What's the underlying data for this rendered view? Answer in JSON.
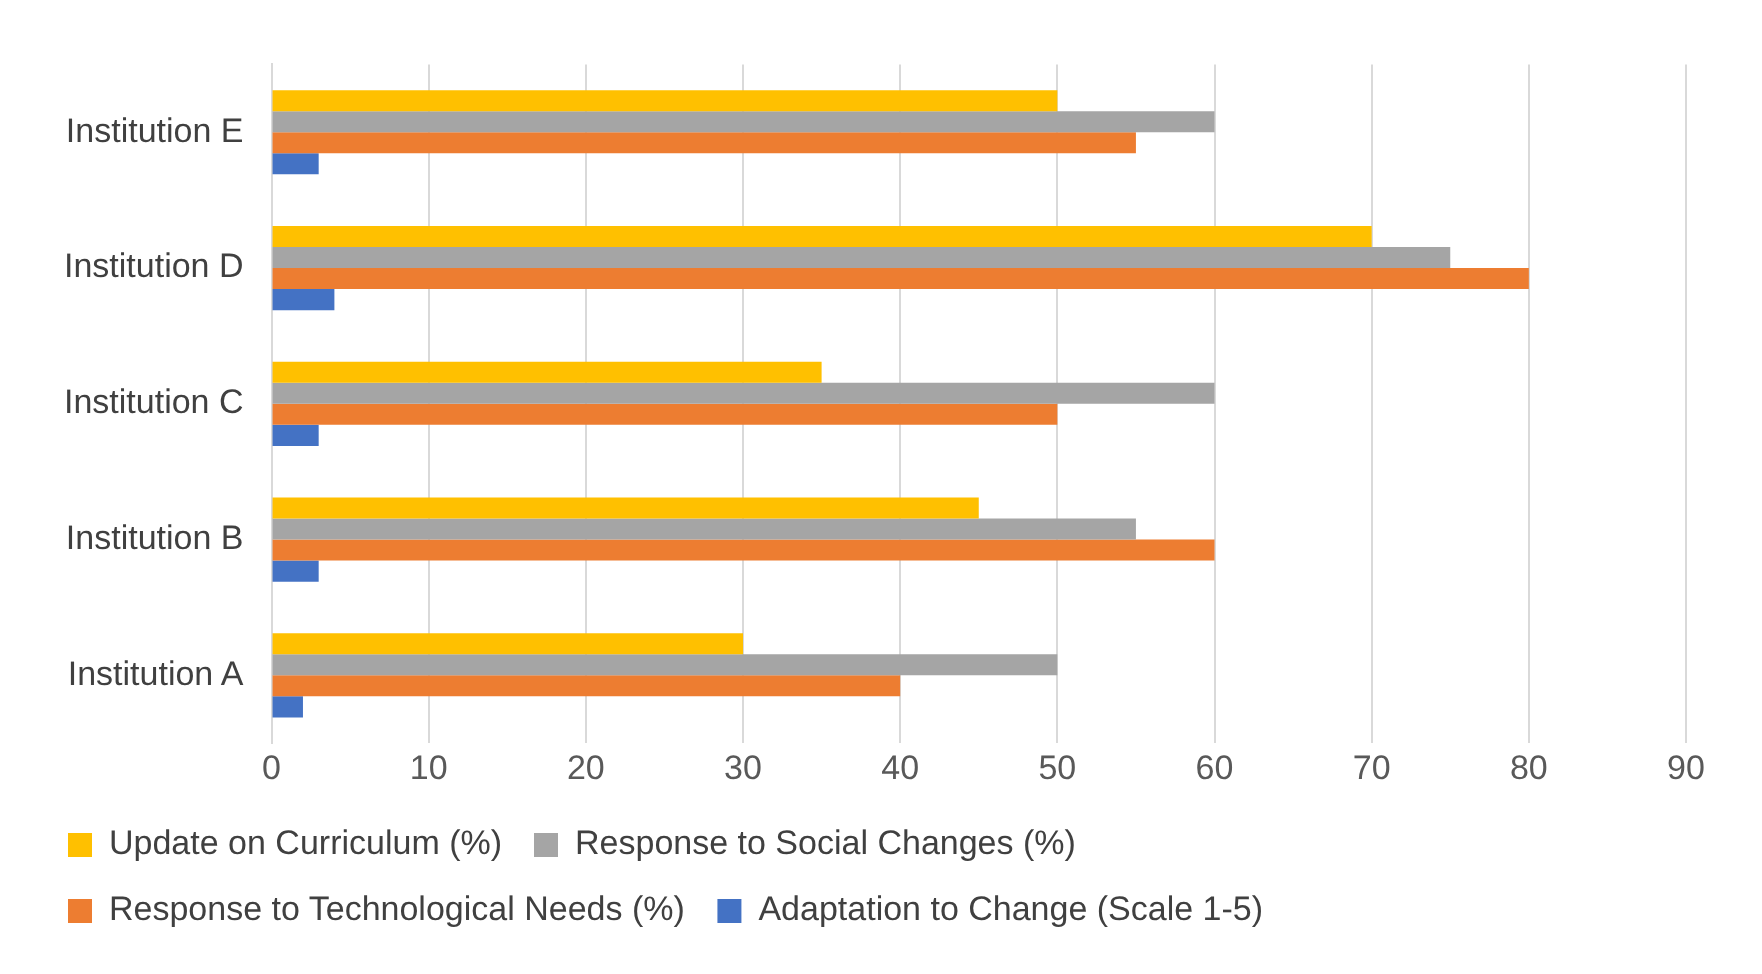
{
  "chart_data": {
    "type": "bar",
    "orientation": "horizontal",
    "categories": [
      "Institution E",
      "Institution D",
      "Institution C",
      "Institution B",
      "Institution A"
    ],
    "series": [
      {
        "name": "Update on Curriculum (%)",
        "color": "#ffc000",
        "values": [
          50,
          70,
          35,
          45,
          30
        ]
      },
      {
        "name": "Response to Social Changes (%)",
        "color": "#a5a5a5",
        "values": [
          60,
          75,
          60,
          55,
          50
        ]
      },
      {
        "name": "Response to Technological Needs (%)",
        "color": "#ed7d31",
        "values": [
          55,
          80,
          50,
          60,
          40
        ]
      },
      {
        "name": "Adaptation to Change (Scale 1-5)",
        "color": "#4472c4",
        "values": [
          3,
          4,
          3,
          3,
          2
        ]
      }
    ],
    "xlim": [
      0,
      90
    ],
    "xticks": [
      0,
      10,
      20,
      30,
      40,
      50,
      60,
      70,
      80,
      90
    ],
    "grid": "x",
    "legend": "bottom"
  }
}
